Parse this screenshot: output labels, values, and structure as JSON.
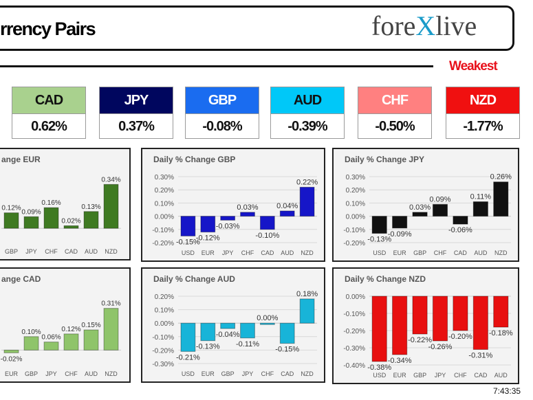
{
  "header": {
    "title": "rrency Pairs",
    "logo_text": "forexlive",
    "weakest_label": "Weakest"
  },
  "cards": [
    {
      "currency": "CAD",
      "change": "0.62%",
      "color": "#a9d18e",
      "text_color": "#111"
    },
    {
      "currency": "JPY",
      "change": "0.37%",
      "color": "#00065e",
      "text_color": "#fff"
    },
    {
      "currency": "GBP",
      "change": "-0.08%",
      "color": "#1a6cf0",
      "text_color": "#fff"
    },
    {
      "currency": "AUD",
      "change": "-0.39%",
      "color": "#00c8f8",
      "text_color": "#111"
    },
    {
      "currency": "CHF",
      "change": "-0.50%",
      "color": "#ff8080",
      "text_color": "#fff"
    },
    {
      "currency": "NZD",
      "change": "-1.77%",
      "color": "#f01010",
      "text_color": "#fff"
    }
  ],
  "chart_data": [
    {
      "type": "bar",
      "title": "ange EUR",
      "categories": [
        "GBP",
        "JPY",
        "CHF",
        "CAD",
        "AUD",
        "NZD"
      ],
      "values": [
        0.12,
        0.09,
        0.16,
        0.02,
        0.13,
        0.34
      ],
      "ylim": [
        -0.1,
        0.4
      ],
      "yticks": [],
      "color": "#3f7a22",
      "cropped": true
    },
    {
      "type": "bar",
      "title": "Daily % Change GBP",
      "categories": [
        "USD",
        "EUR",
        "JPY",
        "CHF",
        "CAD",
        "AUD",
        "NZD"
      ],
      "values": [
        -0.15,
        -0.12,
        -0.03,
        0.03,
        -0.1,
        0.04,
        0.22
      ],
      "ylim": [
        -0.2,
        0.3
      ],
      "yticks": [
        "0.30%",
        "0.20%",
        "0.10%",
        "0.00%",
        "-0.10%",
        "-0.20%"
      ],
      "color": "#1616c8"
    },
    {
      "type": "bar",
      "title": "Daily % Change JPY",
      "categories": [
        "USD",
        "EUR",
        "GBP",
        "CHF",
        "CAD",
        "AUD",
        "NZD"
      ],
      "values": [
        -0.13,
        -0.09,
        0.03,
        0.09,
        -0.06,
        0.11,
        0.26
      ],
      "ylim": [
        -0.2,
        0.3
      ],
      "yticks": [
        "0.30%",
        "0.20%",
        "0.10%",
        "0.00%",
        "-0.10%",
        "-0.20%"
      ],
      "color": "#111111"
    },
    {
      "type": "bar",
      "title": "ange CAD",
      "categories": [
        "EUR",
        "GBP",
        "JPY",
        "CHF",
        "AUD",
        "NZD"
      ],
      "values": [
        -0.02,
        0.1,
        0.06,
        0.12,
        0.15,
        0.31
      ],
      "ylim": [
        -0.1,
        0.4
      ],
      "yticks": [],
      "color": "#8fc46a",
      "cropped": true
    },
    {
      "type": "bar",
      "title": "Daily % Change AUD",
      "categories": [
        "USD",
        "EUR",
        "GBP",
        "JPY",
        "CHF",
        "CAD",
        "NZD"
      ],
      "values": [
        -0.21,
        -0.13,
        -0.04,
        -0.11,
        0.0,
        -0.15,
        0.18
      ],
      "ylim": [
        -0.3,
        0.2
      ],
      "yticks": [
        "0.20%",
        "0.10%",
        "0.00%",
        "-0.10%",
        "-0.20%",
        "-0.30%"
      ],
      "color": "#18b4d8"
    },
    {
      "type": "bar",
      "title": "Daily % Change NZD",
      "categories": [
        "USD",
        "EUR",
        "GBP",
        "JPY",
        "CHF",
        "CAD",
        "AUD"
      ],
      "values": [
        -0.38,
        -0.34,
        -0.22,
        -0.26,
        -0.2,
        -0.31,
        -0.18
      ],
      "ylim": [
        -0.4,
        0.0
      ],
      "yticks": [
        "0.00%",
        "-0.10%",
        "-0.20%",
        "-0.30%",
        "-0.40%"
      ],
      "color": "#e81010"
    }
  ],
  "timestamp": "7:43:35"
}
